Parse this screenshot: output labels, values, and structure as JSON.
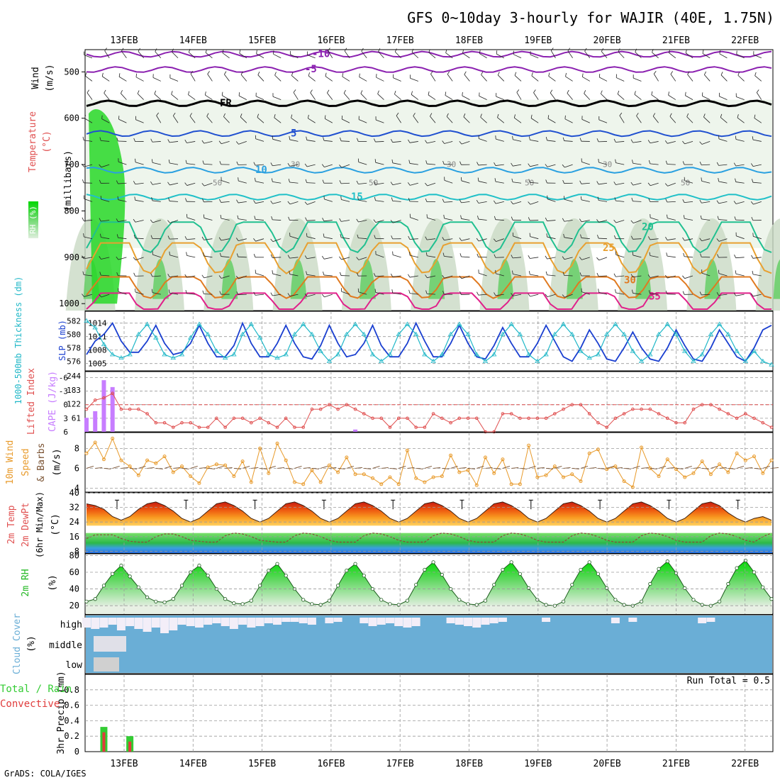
{
  "header": {
    "title": "GFS 0~10day 3-hourly for WAJIR (40E, 1.75N)",
    "credit": "GrADS: COLA/IGES"
  },
  "colors": {
    "frame": "#000000",
    "grid": "#9a9a9a",
    "temperature_red": "#e04040",
    "wind_black": "#000000",
    "slp_blue": "#1a3fd0",
    "thickness_cyan": "#22b8c8",
    "cape_purple": "#c77dff",
    "lifted_index_red": "#e05050",
    "wind10_orange": "#e89a2a",
    "barb_brown": "#7a5232",
    "rh_green": "#22b822",
    "cloud_blue": "#6aaed6",
    "cloud_white": "#f3eef8",
    "cloud_gray": "#d0d0d0",
    "precip_green": "#33cc33",
    "precip_red": "#e03c3c"
  },
  "chart_data": [
    {
      "type": "heatmap",
      "panel": "upper_air",
      "ylabel": "(millibars)",
      "side_labels": [
        "Wind",
        "(m/s)",
        "Temperature",
        "(°C)",
        "RH (%)"
      ],
      "x_ticks": [
        "13FEB",
        "14FEB",
        "15FEB",
        "16FEB",
        "17FEB",
        "18FEB",
        "19FEB",
        "20FEB",
        "21FEB",
        "22FEB"
      ],
      "y_ticks": [
        500,
        600,
        700,
        800,
        900,
        1000
      ],
      "ylim": [
        1015,
        452
      ],
      "isotherms": [
        {
          "label": "-10",
          "level": 462,
          "color": "#8b20b0"
        },
        {
          "label": "-5",
          "level": 495,
          "color": "#8b20b0"
        },
        {
          "label": "FR",
          "level": 568,
          "color": "#000000"
        },
        {
          "label": "5",
          "level": 633,
          "color": "#2050d0"
        },
        {
          "label": "10",
          "level": 712,
          "color": "#2aa0e0"
        },
        {
          "label": "15",
          "level": 770,
          "color": "#20c0c8"
        },
        {
          "label": "20",
          "level": 835,
          "color": "#20c090"
        },
        {
          "label": "25",
          "level": 880,
          "color": "#e8a030"
        },
        {
          "label": "30",
          "level": 950,
          "color": "#e07a20"
        },
        {
          "label": "35",
          "level": 985,
          "color": "#e0208a"
        }
      ],
      "rh_contour_labels": [
        "50",
        "30",
        "50",
        "30",
        "50",
        "30",
        "50"
      ]
    },
    {
      "type": "line",
      "panel": "slp_thickness",
      "ylabel_left": "1000-500mb Thickness (dm)",
      "ylabel_right": "SLP (mb)",
      "yticks_left": [
        576,
        578,
        580,
        582
      ],
      "yticks_right": [
        1005,
        1008,
        1011,
        1014
      ],
      "ylim_left": [
        575,
        583
      ],
      "series": [
        {
          "name": "SLP (mb)",
          "axis": "right",
          "values": [
            1007,
            1010,
            1011.5,
            1014,
            1010,
            1007.5,
            1007.5,
            1010,
            1013.5,
            1009.5,
            1007,
            1007.5,
            1009.5,
            1013.5,
            1009.5,
            1006.5,
            1006.5,
            1009,
            1014,
            1009.5,
            1006.5,
            1006.5,
            1009.5,
            1013.5,
            1009.5,
            1006.5,
            1006,
            1009,
            1013.5,
            1009.5,
            1006.5,
            1007,
            1009.5,
            1013.5,
            1009,
            1006.5,
            1006.5,
            1009.5,
            1014,
            1010,
            1006.5,
            1006.5,
            1009.5,
            1013.5,
            1009.5,
            1006.5,
            1006,
            1009,
            1013,
            1009.5,
            1006.5,
            1006.5,
            1009.5,
            1013.5,
            1010,
            1006.5,
            1005.5,
            1008.5,
            1012.5,
            1009.5,
            1006,
            1005.5,
            1008.5,
            1012,
            1008.5,
            1006,
            1005.5,
            1008.5,
            1012.5,
            1009,
            1006,
            1005.5,
            1008.5,
            1012.5,
            1009.5,
            1006.5,
            1005.5,
            1008.5,
            1012.5,
            1013.5
          ]
        },
        {
          "name": "Thickness (dm)",
          "axis": "left",
          "values": [
            582,
            581,
            578.5,
            577,
            576.5,
            577,
            580,
            581.5,
            579.5,
            577,
            576.5,
            577,
            579.5,
            581.5,
            580,
            577.5,
            576.5,
            577,
            580,
            581.5,
            579.5,
            577,
            576.5,
            577,
            580,
            581.5,
            580,
            577.5,
            576,
            577,
            580,
            581.5,
            580,
            577,
            576,
            577,
            580,
            581.5,
            580,
            577,
            576,
            577,
            580,
            581.5,
            580,
            577,
            576,
            577,
            580,
            581.5,
            580,
            577,
            576,
            577,
            580,
            581.5,
            580,
            577.5,
            576.5,
            577,
            580,
            581.5,
            580,
            577.5,
            576,
            577,
            580,
            581.5,
            580,
            577.5,
            576,
            577,
            580,
            581.5,
            580,
            577.5,
            576,
            577.5,
            576,
            575.5
          ]
        }
      ]
    },
    {
      "type": "bar",
      "panel": "cape_li",
      "ylabel_left": "Lifted Index",
      "ylabel_right": "CAPE (J/kg)",
      "yticks_left": [
        6,
        3,
        0,
        -3,
        -6
      ],
      "yticks_right": [
        61,
        122,
        183,
        244
      ],
      "ylim_li": [
        6,
        -7
      ],
      "ylim_cape": [
        0,
        244
      ],
      "cape": [
        61,
        90,
        225,
        195,
        0,
        0,
        0,
        0,
        0,
        0,
        0,
        0,
        0,
        0,
        0,
        0,
        0,
        0,
        0,
        0,
        0,
        0,
        0,
        0,
        0,
        0,
        0,
        0,
        0,
        0,
        0,
        10,
        0,
        0,
        0,
        0,
        0,
        0,
        0,
        0,
        0,
        0,
        0,
        0,
        0,
        0,
        0,
        0,
        0,
        0,
        0,
        0,
        0,
        0,
        0,
        0,
        0,
        0,
        0,
        0,
        0,
        0,
        0,
        0,
        0,
        0,
        0,
        0,
        0,
        0,
        0,
        0,
        0,
        0,
        0,
        0,
        0,
        0,
        0,
        0
      ],
      "lifted_index": [
        1,
        -1,
        -1.5,
        -2.5,
        1,
        1,
        1,
        2,
        4,
        4,
        5,
        4,
        4,
        5,
        5,
        3,
        5,
        3,
        3,
        4,
        3,
        4,
        5,
        3,
        5,
        5,
        1,
        1,
        0,
        1,
        0,
        1,
        2,
        3,
        3,
        5,
        3,
        3,
        5,
        5,
        2,
        3,
        4,
        3,
        3,
        3,
        6,
        6,
        2,
        2,
        3,
        3,
        3,
        3,
        2,
        1,
        0,
        0,
        2,
        4,
        5,
        3,
        2,
        1,
        1,
        1,
        2,
        3,
        4,
        4,
        1,
        0,
        0,
        1,
        2,
        3,
        2,
        3,
        4,
        5
      ]
    },
    {
      "type": "line",
      "panel": "wind10",
      "ylabel": "10m Wind Speed & Barbs (m/s)",
      "yticks": [
        4,
        6,
        8
      ],
      "ylim": [
        3.6,
        9.6
      ],
      "series": [
        {
          "name": "10m Wind Speed",
          "values": [
            7.5,
            8.6,
            6.9,
            9,
            6.8,
            6.2,
            5.3,
            6.8,
            6.5,
            7.2,
            5.6,
            6.2,
            5.2,
            4.5,
            6.1,
            6.4,
            6.3,
            5.2,
            6.7,
            4.6,
            8,
            5.5,
            8.5,
            6.8,
            4.6,
            4.4,
            5.8,
            4.6,
            6.3,
            5.6,
            7.1,
            5.4,
            5.4,
            5,
            4.4,
            5.1,
            4.4,
            7.8,
            5,
            4.6,
            5.1,
            5.2,
            7.3,
            5.6,
            5.8,
            4.3,
            7.1,
            5.5,
            6.9,
            4.4,
            4.4,
            8.3,
            5.1,
            5.3,
            6.2,
            5.1,
            5.4,
            4.7,
            7.5,
            7.9,
            5.9,
            6.2,
            4.7,
            4.1,
            8.1,
            6,
            5.2,
            6.9,
            5.9,
            5.1,
            5.5,
            6.7,
            5.4,
            6.4,
            5.6,
            7.5,
            6.8,
            7.2,
            5.5,
            6.8
          ]
        }
      ]
    },
    {
      "type": "area",
      "panel": "temp_dewpt",
      "ylabel": "2m Temp 2m DewPt (6hr Min/Max) (°C)",
      "yticks": [
        8,
        16,
        24,
        32,
        40
      ],
      "ylim": [
        7,
        40
      ],
      "series": [
        {
          "name": "2m Temp",
          "values": [
            34,
            33,
            31,
            27,
            25,
            27,
            31,
            34,
            35,
            33,
            30,
            26,
            24,
            26,
            30,
            34,
            35,
            33,
            30,
            26,
            24,
            26,
            30,
            34,
            35,
            33,
            30,
            26,
            24,
            26,
            30,
            34,
            35,
            33,
            30,
            26,
            24,
            26,
            30,
            34,
            35,
            33,
            30,
            26,
            24,
            26,
            30,
            34,
            35,
            33,
            30,
            26,
            24,
            26,
            30,
            34,
            35,
            33,
            30,
            26,
            24,
            26,
            30,
            34,
            35,
            33,
            30,
            26,
            24,
            26,
            30,
            34,
            35,
            33,
            29,
            26,
            24,
            26,
            27,
            25
          ]
        },
        {
          "name": "2m DewPt",
          "values": [
            15,
            17,
            17,
            17,
            15,
            13.5,
            13,
            13,
            16,
            17.5,
            17.5,
            16,
            14,
            13.5,
            13,
            13,
            16.5,
            18,
            17.5,
            16,
            14,
            13.5,
            13,
            13,
            16.5,
            18,
            17.5,
            16,
            14,
            13,
            13,
            13,
            16.5,
            18,
            17.5,
            16,
            14,
            13,
            13,
            13,
            16.5,
            18,
            17.5,
            16,
            14,
            13,
            13,
            13,
            16.5,
            18,
            17.5,
            16,
            14,
            13,
            13,
            13,
            16.5,
            18,
            17.5,
            16,
            14,
            13,
            13,
            13,
            16.5,
            18,
            17.5,
            16,
            14,
            13,
            13,
            13,
            16.5,
            18,
            17.5,
            16,
            14,
            13,
            16,
            18
          ]
        }
      ]
    },
    {
      "type": "area",
      "panel": "rh2m",
      "ylabel": "2m RH (%)",
      "yticks": [
        20,
        40,
        60,
        80
      ],
      "ylim": [
        10,
        82
      ],
      "series": [
        {
          "name": "2m RH",
          "values": [
            25,
            28,
            44,
            58,
            68,
            55,
            42,
            30,
            25,
            24,
            28,
            44,
            60,
            68,
            56,
            40,
            28,
            23,
            22,
            26,
            44,
            62,
            70,
            56,
            40,
            27,
            22,
            21,
            26,
            44,
            62,
            70,
            56,
            40,
            27,
            22,
            21,
            26,
            45,
            63,
            72,
            57,
            40,
            27,
            22,
            21,
            26,
            45,
            63,
            72,
            58,
            41,
            27,
            21,
            20,
            25,
            45,
            63,
            72,
            58,
            41,
            27,
            21,
            20,
            25,
            46,
            64,
            73,
            59,
            41,
            27,
            21,
            20,
            25,
            46,
            65,
            74,
            60,
            42,
            28
          ]
        }
      ]
    },
    {
      "type": "bar",
      "panel": "cloud_cover",
      "ylabel": "Cloud Cover (%)",
      "levels": [
        "high",
        "middle",
        "low"
      ]
    },
    {
      "type": "bar",
      "panel": "precip",
      "ylabel": "3hr Precip (mm)",
      "legend": [
        "Total / Rain",
        "Convective"
      ],
      "yticks": [
        0,
        0.2,
        0.4,
        0.6,
        0.8
      ],
      "ylim": [
        0,
        1
      ],
      "annotation": "Run Total = 0.5",
      "total": [
        0,
        0,
        0.32,
        0,
        0,
        0.2,
        0,
        0
      ],
      "convective": [
        0,
        0,
        0.25,
        0,
        0,
        0.13,
        0,
        0
      ]
    }
  ]
}
